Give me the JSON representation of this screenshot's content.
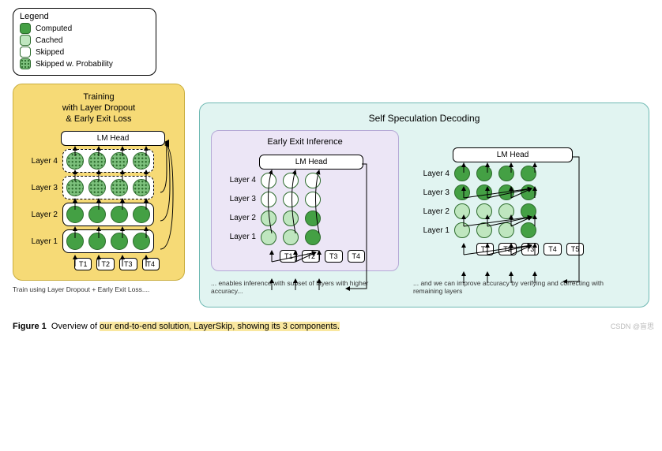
{
  "legend": {
    "title": "Legend",
    "items": [
      {
        "label": "Computed",
        "swatch": "comp"
      },
      {
        "label": "Cached",
        "swatch": "cache"
      },
      {
        "label": "Skipped",
        "swatch": "skip"
      },
      {
        "label": "Skipped w. Probability",
        "swatch": "prob"
      }
    ]
  },
  "colors": {
    "computed": "#44a044",
    "cached": "#bfe6bf",
    "skipped": "#ffffff",
    "prob_base": "#7cc07c",
    "node_border": "#2c6b2c",
    "train_bg": "#f6da76",
    "train_border": "#c9ad3d",
    "ssd_bg": "#e1f4f1",
    "ssd_border": "#6fb9b3",
    "early_bg": "#ece6f6",
    "early_border": "#b5a9d6",
    "highlight": "#f9e79f"
  },
  "training": {
    "title": "Training\nwith Layer Dropout\n& Early Exit Loss",
    "lm_head": "LM Head",
    "layers": [
      {
        "label": "Layer 4",
        "style": "prob",
        "dashed": true
      },
      {
        "label": "Layer 3",
        "style": "prob",
        "dashed": true
      },
      {
        "label": "Layer 2",
        "style": "comp",
        "dashed": false
      },
      {
        "label": "Layer 1",
        "style": "comp",
        "dashed": false
      }
    ],
    "tokens": [
      "T1",
      "T2",
      "T3",
      "T4"
    ],
    "caption": "Train using Layer Dropout + Early Exit Loss...."
  },
  "ssd": {
    "title": "Self Speculation Decoding",
    "early": {
      "title": "Early Exit Inference",
      "lm_head": "LM Head",
      "layer_labels": [
        "Layer 4",
        "Layer 3",
        "Layer 2",
        "Layer 1"
      ],
      "grid": [
        [
          "skip",
          "skip",
          "skip"
        ],
        [
          "skip",
          "skip",
          "skip"
        ],
        [
          "cache",
          "cache",
          "comp"
        ],
        [
          "cache",
          "cache",
          "comp"
        ]
      ],
      "tokens": [
        "T1",
        "T2",
        "T3",
        "T4"
      ],
      "caption": "... enables inference with subset of layers with higher accuracy..."
    },
    "verify": {
      "lm_head": "LM Head",
      "layer_labels": [
        "Layer 4",
        "Layer 3",
        "Layer 2",
        "Layer 1"
      ],
      "grid": [
        [
          "comp",
          "comp",
          "comp",
          "comp"
        ],
        [
          "comp",
          "comp",
          "comp",
          "comp"
        ],
        [
          "cache",
          "cache",
          "cache",
          "comp"
        ],
        [
          "cache",
          "cache",
          "cache",
          "comp"
        ]
      ],
      "tokens": [
        "T1",
        "T2",
        "T3",
        "T4",
        "T5"
      ],
      "caption": "... and we can improve accuracy by verifying and correcting with remaining layers"
    }
  },
  "figure": {
    "label": "Figure 1",
    "text": "Overview of ",
    "highlight": "our end-to-end solution, LayerSkip, showing its 3 components."
  },
  "watermark": "CSDN @盲思"
}
